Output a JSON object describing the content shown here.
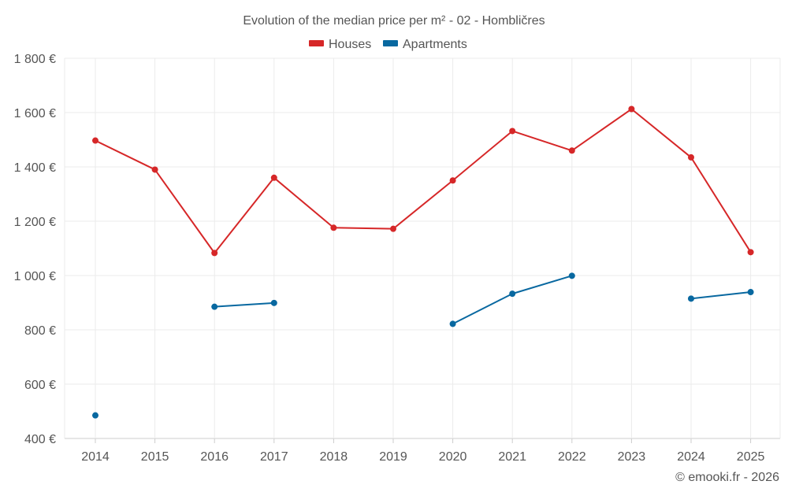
{
  "chart_data": {
    "type": "line",
    "title": "Evolution of the median price per m² - 02 - Hombličres",
    "categories": [
      "2014",
      "2015",
      "2016",
      "2017",
      "2018",
      "2019",
      "2020",
      "2021",
      "2022",
      "2023",
      "2024",
      "2025"
    ],
    "series": [
      {
        "name": "Houses",
        "color": "#d62728",
        "values": [
          1497,
          1390,
          1083,
          1360,
          1176,
          1172,
          1350,
          1532,
          1460,
          1613,
          1435,
          1086
        ]
      },
      {
        "name": "Apartments",
        "color": "#0868a0",
        "values": [
          485,
          null,
          885,
          899,
          null,
          null,
          822,
          933,
          999,
          null,
          915,
          939
        ]
      }
    ],
    "ylim": [
      400,
      1800
    ],
    "yticks": [
      400,
      600,
      800,
      1000,
      1200,
      1400,
      1600,
      1800
    ],
    "ytick_labels": [
      "400 €",
      "600 €",
      "800 €",
      "1 000 €",
      "1 200 €",
      "1 400 €",
      "1 600 €",
      "1 800 €"
    ],
    "grid": true,
    "legend_position": "top-center"
  },
  "credit": "© emooki.fr - 2026"
}
